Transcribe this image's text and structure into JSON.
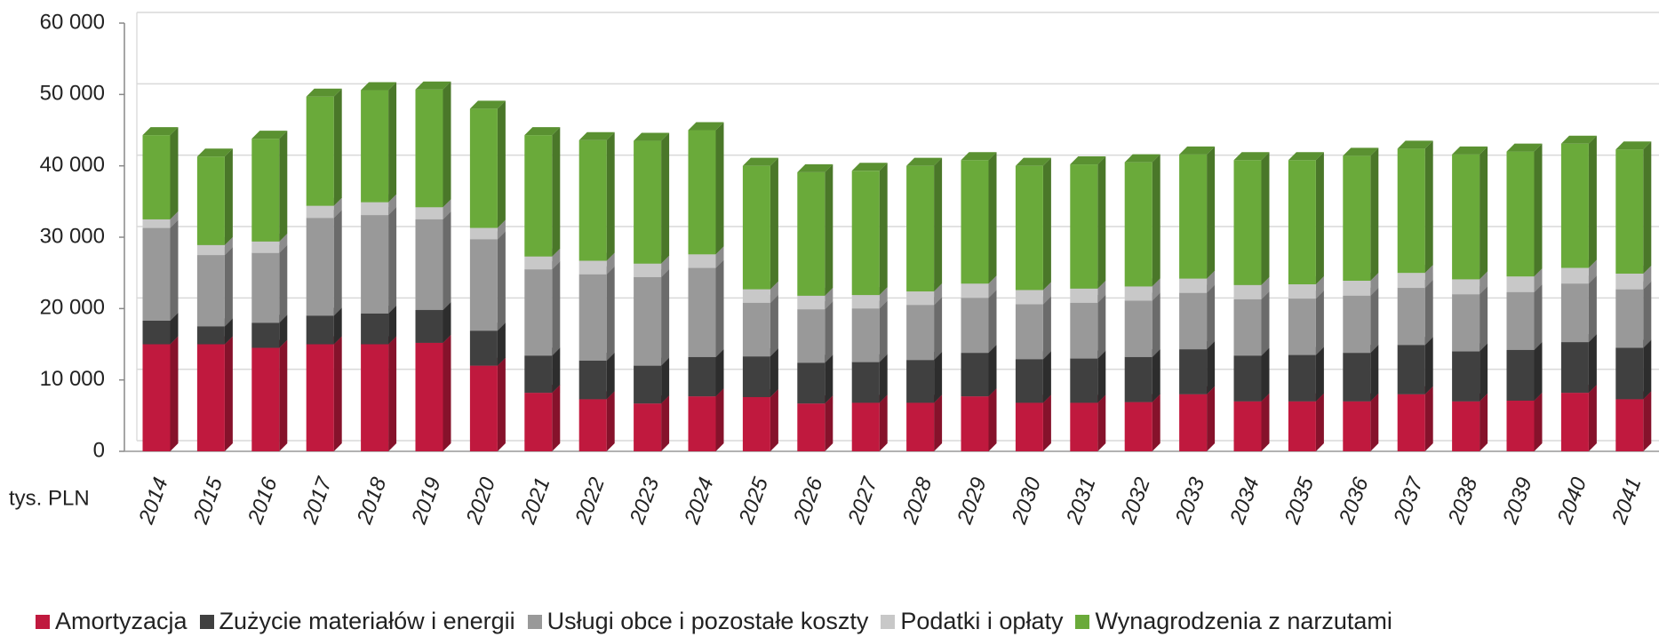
{
  "chart_data": {
    "type": "stacked-bar",
    "categories": [
      "2014",
      "2015",
      "2016",
      "2017",
      "2018",
      "2019",
      "2020",
      "2021",
      "2022",
      "2023",
      "2024",
      "2025",
      "2026",
      "2027",
      "2028",
      "2029",
      "2030",
      "2031",
      "2032",
      "2033",
      "2034",
      "2035",
      "2036",
      "2037",
      "2038",
      "2039",
      "2040",
      "2041"
    ],
    "series": [
      {
        "name": "Amortyzacja",
        "color": "#c0193e",
        "values": [
          15000,
          15000,
          14500,
          15000,
          15000,
          15200,
          12000,
          8200,
          7300,
          6700,
          7700,
          7600,
          6700,
          6800,
          6800,
          7700,
          6800,
          6800,
          6900,
          8000,
          7000,
          7000,
          7000,
          8000,
          7000,
          7100,
          8200,
          7300
        ]
      },
      {
        "name": "Zużycie materiałów i energii",
        "color": "#404040",
        "values": [
          3300,
          2500,
          3500,
          4000,
          4300,
          4600,
          4900,
          5200,
          5400,
          5300,
          5500,
          5700,
          5700,
          5700,
          6000,
          6100,
          6100,
          6200,
          6300,
          6300,
          6400,
          6500,
          6800,
          6900,
          7000,
          7100,
          7100,
          7200
        ]
      },
      {
        "name": "Usługi obce i pozostałe koszty",
        "color": "#999999",
        "values": [
          13000,
          10000,
          9800,
          13700,
          13800,
          12700,
          12800,
          12100,
          12100,
          12400,
          12500,
          7500,
          7500,
          7500,
          7700,
          7700,
          7700,
          7800,
          7900,
          7900,
          7900,
          7900,
          8000,
          8000,
          8000,
          8100,
          8200,
          8200
        ]
      },
      {
        "name": "Podatki i opłaty",
        "color": "#c8c8c8",
        "values": [
          1200,
          1400,
          1600,
          1700,
          1800,
          1700,
          1600,
          1800,
          1900,
          1900,
          1900,
          1900,
          1900,
          1900,
          1900,
          2000,
          2000,
          2000,
          2000,
          2000,
          2000,
          2000,
          2100,
          2100,
          2100,
          2200,
          2200,
          2200
        ]
      },
      {
        "name": "Wynagrodzenia z narzutami",
        "color": "#6aaa3a",
        "values": [
          11800,
          12400,
          14400,
          15300,
          15700,
          16500,
          16700,
          17000,
          16900,
          17200,
          17400,
          17300,
          17300,
          17400,
          17600,
          17300,
          17400,
          17400,
          17400,
          17400,
          17500,
          17400,
          17500,
          17400,
          17500,
          17500,
          17400,
          17400
        ]
      }
    ],
    "ylim": [
      0,
      60000
    ],
    "yticks": [
      0,
      {
        "value": 10000,
        "label": "10 000"
      },
      {
        "value": 20000,
        "label": "20 000"
      },
      {
        "value": 30000,
        "label": "30 000"
      },
      {
        "value": 40000,
        "label": "40 000"
      },
      {
        "value": 50000,
        "label": "50 000"
      },
      {
        "value": 60000,
        "label": "60 000"
      }
    ],
    "y_unit_label": "tys. PLN",
    "grid": true,
    "legend": "bottom"
  }
}
